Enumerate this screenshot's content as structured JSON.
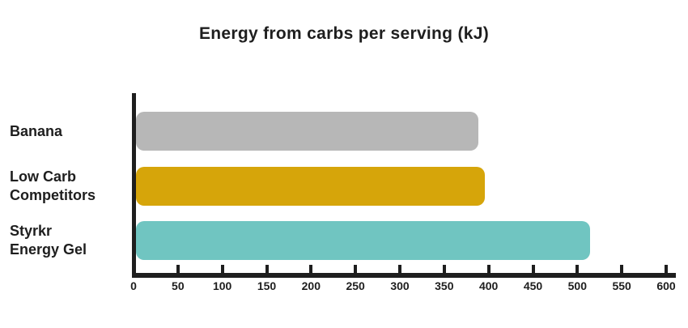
{
  "page": {
    "background": "#ffffff",
    "text_color": "#1e1e1e",
    "axis_color": "#1e1e1e"
  },
  "chart_data": {
    "type": "bar",
    "orientation": "horizontal",
    "title": "Energy from carbs per serving (kJ)",
    "categories": [
      "Banana",
      "Low Carb\nCompetitors",
      "Styrkr\nEnergy Gel"
    ],
    "values": [
      388,
      396,
      514
    ],
    "bar_colors": [
      "#b7b7b7",
      "#d6a50a",
      "#70c5c1"
    ],
    "xlabel": "",
    "ylabel": "",
    "xlim": [
      0,
      600
    ],
    "x_ticks": [
      0,
      50,
      100,
      150,
      200,
      250,
      300,
      350,
      400,
      450,
      500,
      550,
      600
    ],
    "grid": false,
    "legend": false
  }
}
